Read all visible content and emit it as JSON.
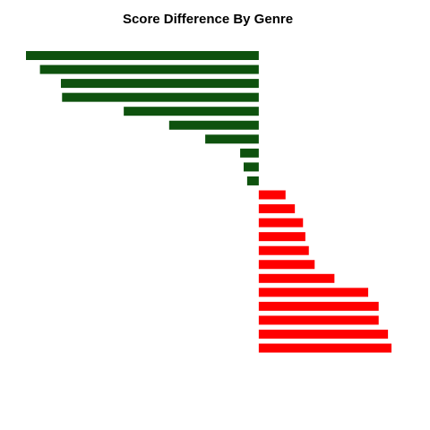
{
  "chart_data": {
    "type": "bar",
    "orientation": "horizontal",
    "title": "Score Difference By Genre",
    "xlabel": "",
    "ylabel": "",
    "axes_visible": false,
    "grid": false,
    "xlim": [
      -1.0,
      0.57
    ],
    "values": [
      -1.0,
      -0.94,
      -0.85,
      -0.845,
      -0.58,
      -0.385,
      -0.23,
      -0.08,
      -0.065,
      -0.05,
      0.115,
      0.155,
      0.19,
      0.2,
      0.215,
      0.24,
      0.325,
      0.47,
      0.515,
      0.515,
      0.555,
      0.57
    ],
    "colors": {
      "negative": "#0e520e",
      "positive": "#ff0000"
    }
  }
}
